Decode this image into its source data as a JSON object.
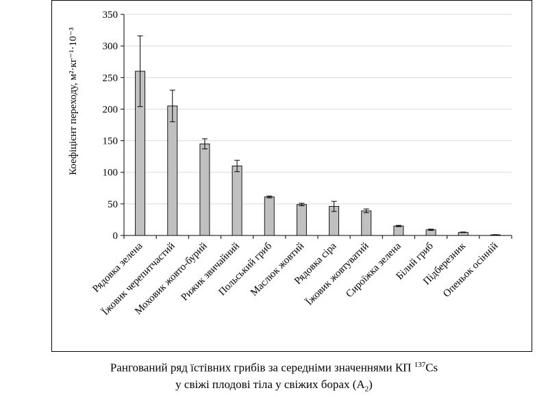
{
  "chart_data": {
    "type": "bar",
    "ylabel": "Коефіцієнт переходу, м²·кг⁻¹·10⁻³",
    "ylim": [
      0,
      350
    ],
    "yticks": [
      0,
      50,
      100,
      150,
      200,
      250,
      300,
      350
    ],
    "grid": "horizontal",
    "legend": "none",
    "categories": [
      "Рядовка зелена",
      "Їжовик черепитчастий",
      "Моховик жовто-бурий",
      "Рижик звичайний",
      "Польський гриб",
      "Маслюк жовтий",
      "Рядовка сіра",
      "Їжовик жовтуватий",
      "Сироїжка зелена",
      "Білий гриб",
      "Підберезник",
      "Опеньок осінній"
    ],
    "values": [
      260,
      205,
      145,
      110,
      61,
      49,
      46,
      39,
      15,
      9,
      5,
      1
    ],
    "errors": [
      56,
      25,
      8,
      9,
      1.5,
      2,
      8,
      3,
      1,
      1,
      0.5,
      0.3
    ],
    "bar_color": "#c0c0c0"
  },
  "caption": {
    "line1_pre": "Рангований ряд їстівних грибів за середніми значеннями КП ",
    "line1_sup": "137",
    "line1_post": "Cs",
    "line2_pre": "у свіжі плодові тіла у свіжих борах (А",
    "line2_sub": "2",
    "line2_post": ")"
  }
}
